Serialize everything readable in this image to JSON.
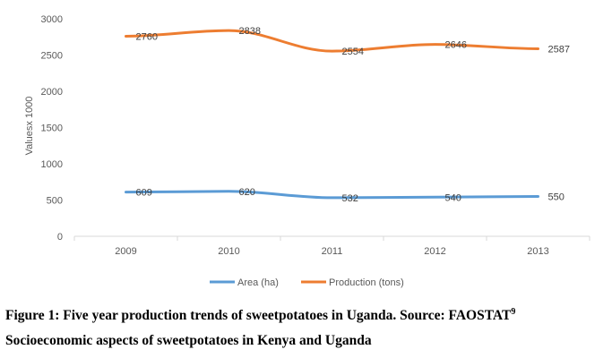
{
  "chart_data": {
    "type": "line",
    "categories": [
      "2009",
      "2010",
      "2011",
      "2012",
      "2013"
    ],
    "series": [
      {
        "name": "Area (ha)",
        "values": [
          609,
          620,
          532,
          540,
          550
        ],
        "color": "#5B9BD5"
      },
      {
        "name": "Production (tons)",
        "values": [
          2760,
          2838,
          2554,
          2646,
          2587
        ],
        "color": "#ED7D31"
      }
    ],
    "ylabel": "Valuesx 1000",
    "ylim": [
      0,
      3000
    ],
    "yticks": [
      0,
      500,
      1000,
      1500,
      2000,
      2500,
      3000
    ],
    "grid": false,
    "legend_position": "bottom",
    "data_labels": true
  },
  "caption": {
    "line1_text": "Figure 1: Five year production trends of sweetpotatoes in Uganda. Source: FAOSTAT",
    "line1_sup": "9",
    "line2_text": "Socioeconomic aspects of sweetpotatoes in Kenya and Uganda"
  }
}
